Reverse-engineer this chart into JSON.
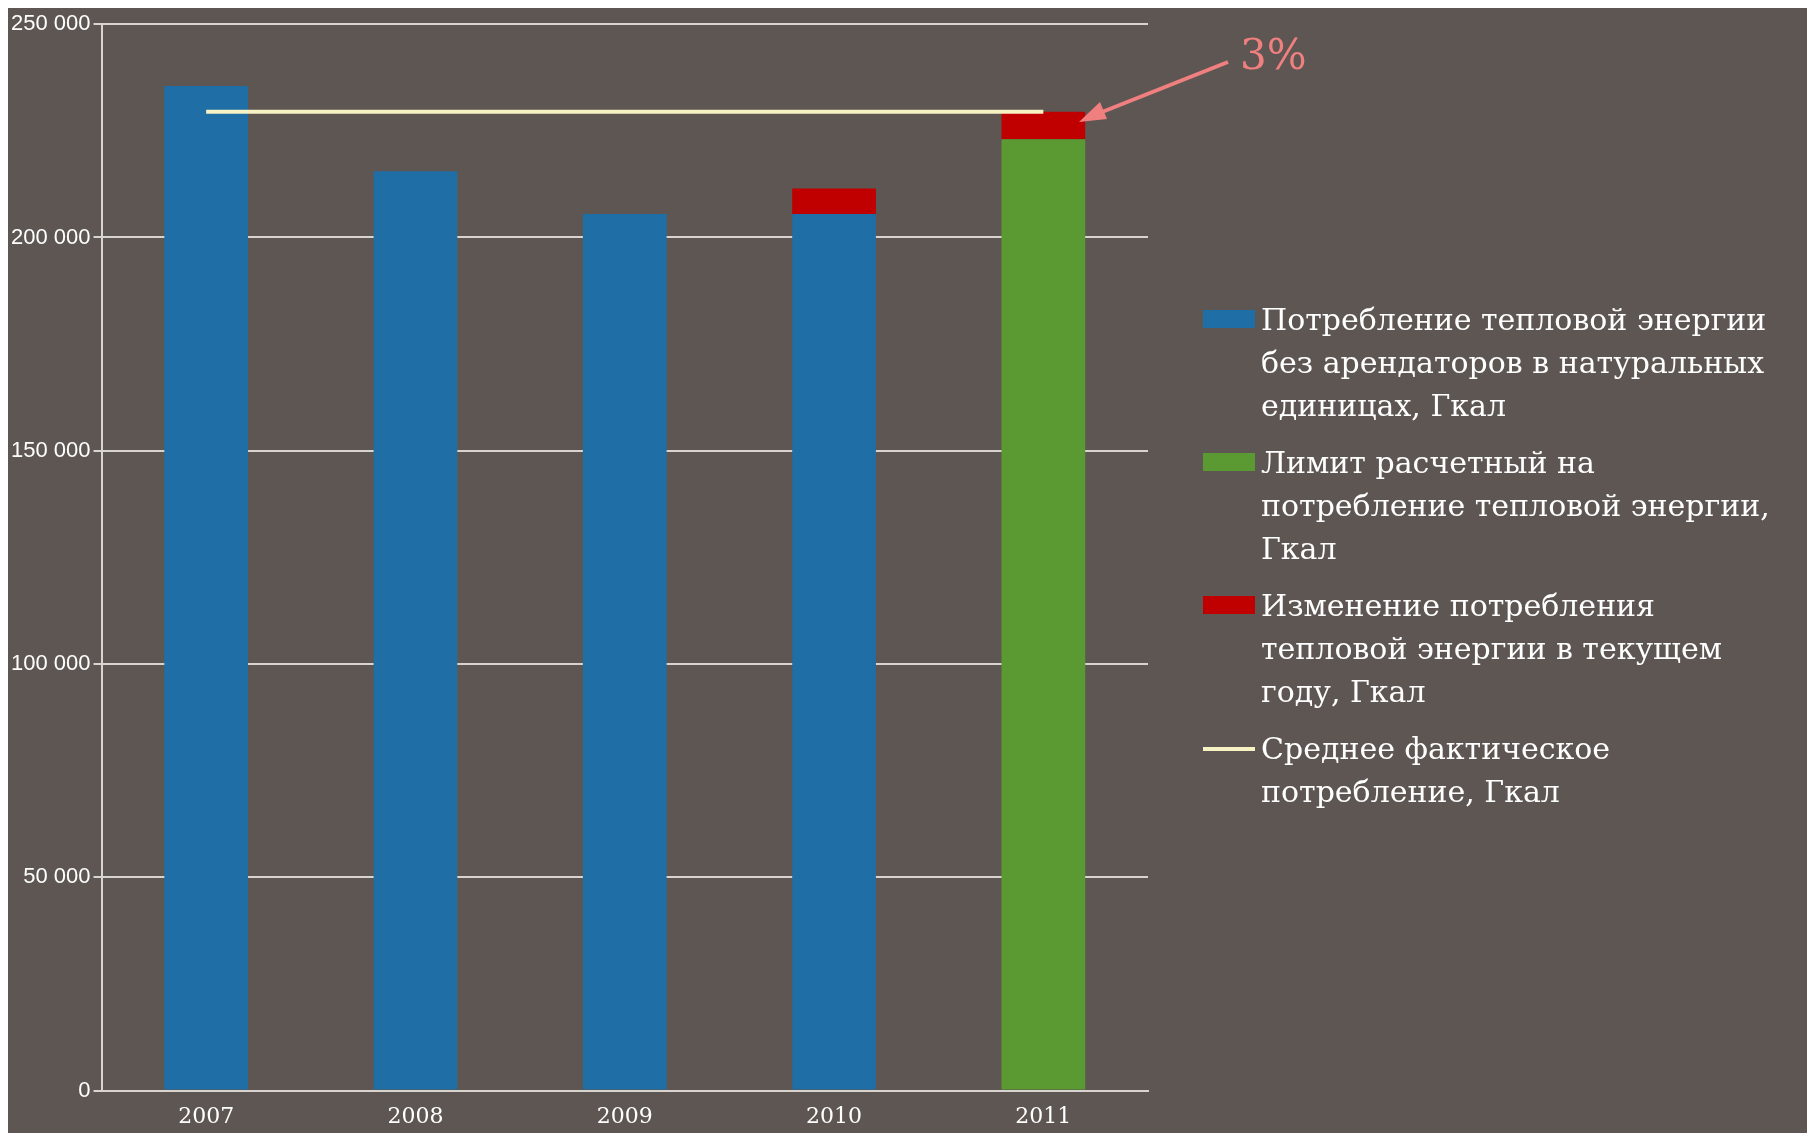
{
  "chart_data": {
    "type": "bar",
    "stacked": true,
    "categories": [
      "2007",
      "2008",
      "2009",
      "2010",
      "2011"
    ],
    "series": [
      {
        "name": "Потребление тепловой энергии без арендаторов в натуральных единицах, Гкал",
        "color": "#1f6ea6",
        "values": [
          235500,
          215500,
          205500,
          205500,
          null
        ]
      },
      {
        "name": "Лимит расчетный на потребление тепловой энергии, Гкал",
        "color": "#5b9a32",
        "values": [
          null,
          null,
          null,
          null,
          223000
        ]
      },
      {
        "name": "Изменение потребления тепловой энергии в текущем году, Гкал",
        "color": "#c00000",
        "values": [
          null,
          null,
          null,
          6000,
          6500
        ]
      },
      {
        "name": "Среднее фактическое потребление, Гкал",
        "type": "line",
        "color": "#f7f2c4",
        "values": [
          229500,
          229500,
          229500,
          229500,
          229500
        ]
      }
    ],
    "ylim": [
      0,
      250000
    ],
    "yticks": [
      {
        "value": 0,
        "label": "0"
      },
      {
        "value": 50000,
        "label": "50 000"
      },
      {
        "value": 100000,
        "label": "100 000"
      },
      {
        "value": 150000,
        "label": "150 000"
      },
      {
        "value": 200000,
        "label": "200 000"
      },
      {
        "value": 250000,
        "label": "250 000"
      }
    ],
    "grid": "y",
    "legend": "right",
    "marker": "none",
    "annotations": [
      "3%"
    ]
  }
}
